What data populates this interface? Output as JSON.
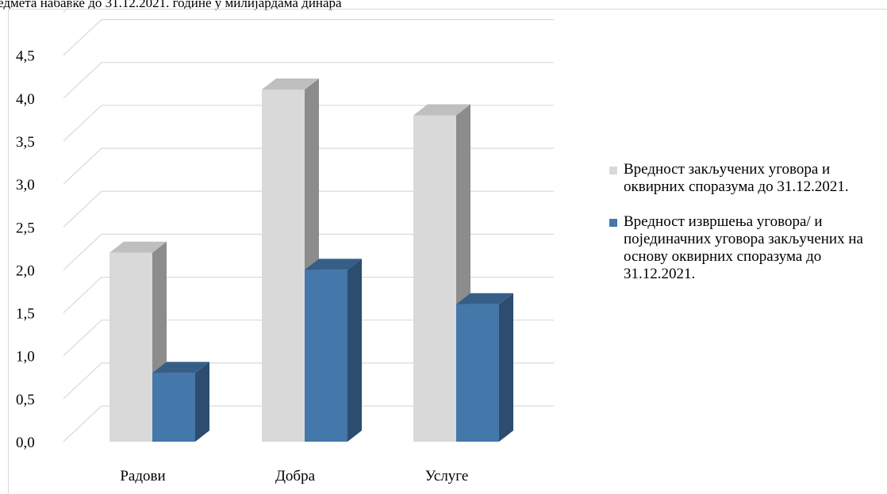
{
  "chart_data": {
    "type": "bar",
    "title": "едмета набавке до 31.12.2021. године у милијардама динара",
    "categories": [
      "Радови",
      "Добра",
      "Услуге"
    ],
    "series": [
      {
        "name": "Вредност закључених уговора и оквирних споразума до 31.12.2021.",
        "values": [
          2.2,
          4.1,
          3.8
        ],
        "color": "#d9d9d9",
        "side_color": "#8c8c8c",
        "top_color": "#bfbfbf"
      },
      {
        "name": "Вредност извршења уговора/ и појединачних уговора закључених на основу оквирних споразума до 31.12.2021.",
        "values": [
          0.8,
          2.0,
          1.6
        ],
        "color": "#4477aa",
        "side_color": "#2c4d6e",
        "top_color": "#365f88"
      }
    ],
    "ylim": [
      0,
      4.5
    ],
    "ytick_labels": [
      "0,0",
      "0,5",
      "1,0",
      "1,5",
      "2,0",
      "2,5",
      "3,0",
      "3,5",
      "4,0",
      "4,5"
    ],
    "grid": true,
    "legend_position": "right",
    "xlabel": "",
    "ylabel": ""
  }
}
